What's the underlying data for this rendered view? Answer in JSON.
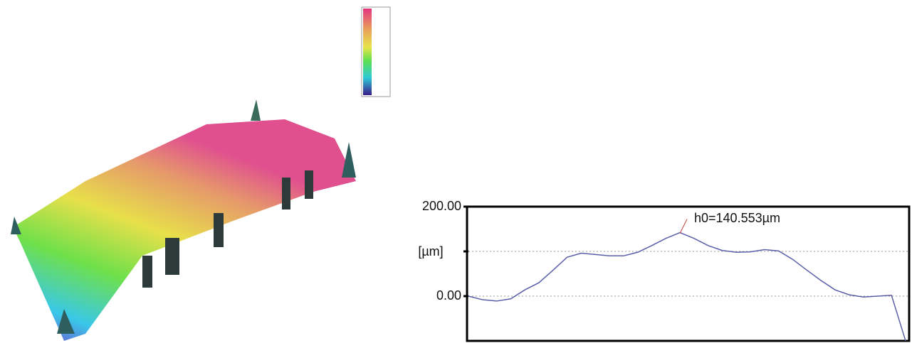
{
  "chart_data": {
    "type": "line",
    "y_label": "[µm]",
    "annotation": "h0=140.553µm",
    "annotation_value": 140.553,
    "values": [
      0,
      -8,
      -11,
      -6,
      14,
      30,
      58,
      87,
      96,
      93,
      90,
      90,
      98,
      113,
      129,
      142,
      129,
      113,
      102,
      98,
      99,
      104,
      101,
      82,
      58,
      35,
      14,
      3,
      -2,
      0,
      2,
      -100
    ],
    "color": "#5a5ea8",
    "ylim": [
      -100,
      200
    ],
    "yticks": [
      {
        "value": 200,
        "label": "200.00"
      },
      {
        "value": 100,
        "label": null
      },
      {
        "value": 0,
        "label": "0.00"
      }
    ],
    "grid": true
  }
}
